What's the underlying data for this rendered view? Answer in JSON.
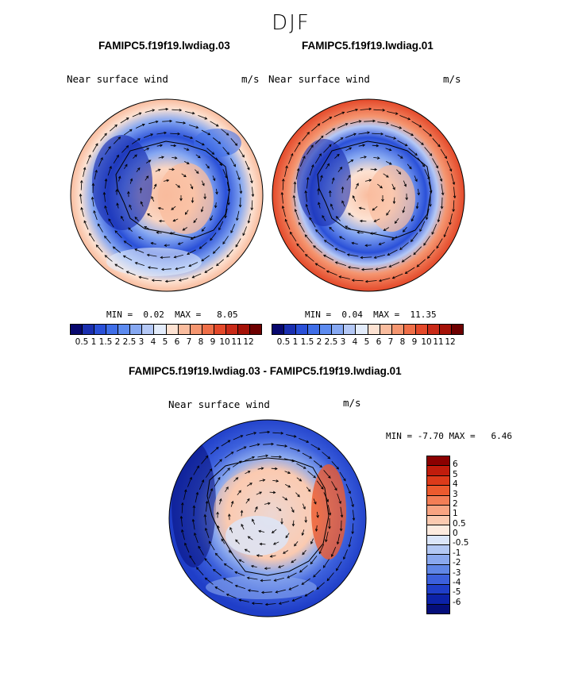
{
  "season": "DJF",
  "panels": [
    {
      "case": "FAMIPC5.f19f19.lwdiag.03",
      "variable": "Near surface wind",
      "units": "m/s",
      "min_label": "MIN =",
      "min_value": "0.02",
      "max_label": "MAX =",
      "max_value": "8.05"
    },
    {
      "case": "FAMIPC5.f19f19.lwdiag.01",
      "variable": "Near surface wind",
      "units": "m/s",
      "min_label": "MIN =",
      "min_value": "0.04",
      "max_label": "MAX =",
      "max_value": "11.35"
    }
  ],
  "diff_panel": {
    "title": "FAMIPC5.f19f19.lwdiag.03 - FAMIPC5.f19f19.lwdiag.01",
    "variable": "Near surface wind",
    "units": "m/s",
    "min_label": "MIN =",
    "min_value": "-7.70",
    "max_label": "MAX =",
    "max_value": "6.46"
  },
  "abs_colorbar": {
    "labels": [
      "0.5",
      "1",
      "1.5",
      "2",
      "2.5",
      "3",
      "4",
      "5",
      "6",
      "7",
      "8",
      "9",
      "10",
      "11",
      "12"
    ],
    "colors": [
      "#08086e",
      "#1a2fb0",
      "#2a50d8",
      "#3f6ee8",
      "#5d8bf0",
      "#86a8f2",
      "#b4c8f6",
      "#e3ecfb",
      "#fde2d2",
      "#f9bc9e",
      "#f59670",
      "#ef6f48",
      "#e4492a",
      "#c92a18",
      "#a51208",
      "#6e0000"
    ]
  },
  "diff_colorbar": {
    "labels": [
      "6",
      "5",
      "4",
      "3",
      "2",
      "1",
      "0.5",
      "0",
      "-0.5",
      "-1",
      "-2",
      "-3",
      "-4",
      "-5",
      "-6"
    ],
    "colors": [
      "#8b0000",
      "#c01c0c",
      "#dc3a1a",
      "#ec5a2e",
      "#f37e56",
      "#f8a482",
      "#fbcab0",
      "#fdebdf",
      "#dbe6fa",
      "#b3c8f4",
      "#8aa8ee",
      "#6086e6",
      "#3c60dc",
      "#1f3ec8",
      "#0c22a8",
      "#050e7a"
    ]
  }
}
